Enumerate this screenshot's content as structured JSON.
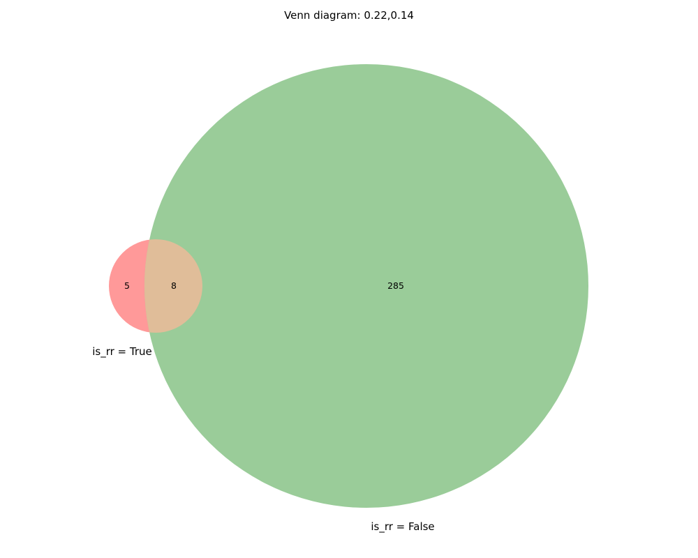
{
  "title": "Venn diagram: 0.22,0.14",
  "colors": {
    "set_a": "#ff9999",
    "set_b": "#9acc99",
    "overlap": "#e0bd99"
  },
  "sets": [
    {
      "label": "is_rr = True",
      "only_count": "5"
    },
    {
      "label": "is_rr = False",
      "only_count": "285"
    }
  ],
  "intersection_count": "8"
}
